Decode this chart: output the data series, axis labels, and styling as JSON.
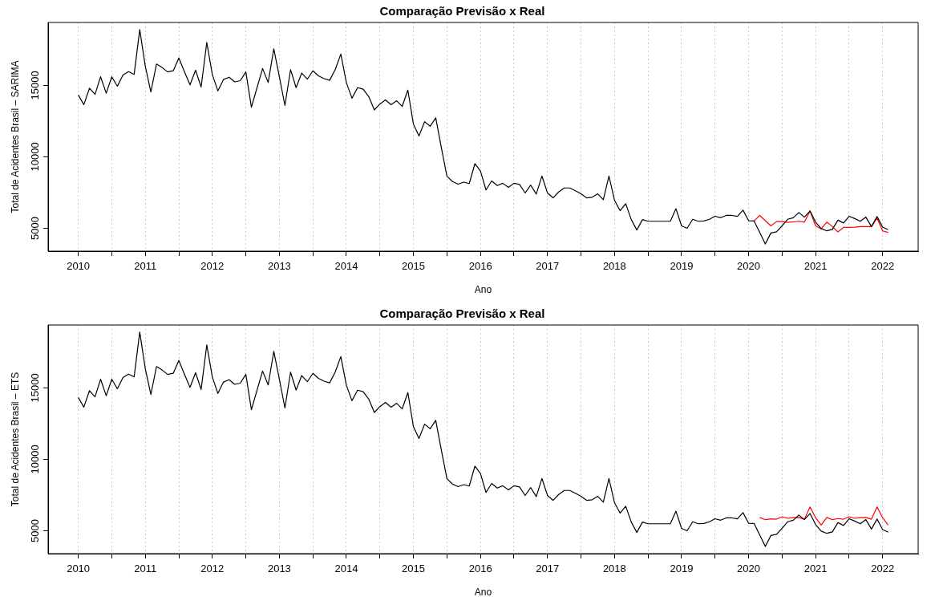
{
  "chart_data": [
    {
      "type": "line",
      "title": "Comparação Previsão x Real",
      "xlabel": "Ano",
      "ylabel": "Total de Acidentes Brasil – SARIMA",
      "legend": false,
      "grid": "x",
      "marker": "none",
      "line_style": "solid",
      "xlim": [
        2009.55,
        2022.53
      ],
      "ylim": [
        3400,
        19400
      ],
      "xticks": [
        2010,
        {
          "value": 2010.5,
          "label": null
        },
        2011,
        {
          "value": 2011.5,
          "label": null
        },
        2012,
        {
          "value": 2012.5,
          "label": null
        },
        2013,
        {
          "value": 2013.5,
          "label": null
        },
        2014,
        {
          "value": 2014.5,
          "label": null
        },
        2015,
        {
          "value": 2015.5,
          "label": null
        },
        2016,
        {
          "value": 2016.5,
          "label": null
        },
        2017,
        {
          "value": 2017.5,
          "label": null
        },
        2018,
        {
          "value": 2018.5,
          "label": null
        },
        2019,
        {
          "value": 2019.5,
          "label": null
        },
        2020,
        {
          "value": 2020.5,
          "label": null
        },
        2021,
        {
          "value": 2021.5,
          "label": null
        },
        2022
      ],
      "yticks": [
        5000,
        10000,
        15000
      ],
      "x": [
        2010,
        2010.083,
        2010.167,
        2010.25,
        2010.333,
        2010.417,
        2010.5,
        2010.583,
        2010.667,
        2010.75,
        2010.833,
        2010.917,
        2011,
        2011.083,
        2011.167,
        2011.25,
        2011.333,
        2011.417,
        2011.5,
        2011.583,
        2011.667,
        2011.75,
        2011.833,
        2011.917,
        2012,
        2012.083,
        2012.167,
        2012.25,
        2012.333,
        2012.417,
        2012.5,
        2012.583,
        2012.667,
        2012.75,
        2012.833,
        2012.917,
        2013,
        2013.083,
        2013.167,
        2013.25,
        2013.333,
        2013.417,
        2013.5,
        2013.583,
        2013.667,
        2013.75,
        2013.833,
        2013.917,
        2014,
        2014.083,
        2014.167,
        2014.25,
        2014.333,
        2014.417,
        2014.5,
        2014.583,
        2014.667,
        2014.75,
        2014.833,
        2014.917,
        2015,
        2015.083,
        2015.167,
        2015.25,
        2015.333,
        2015.417,
        2015.5,
        2015.583,
        2015.667,
        2015.75,
        2015.833,
        2015.917,
        2016,
        2016.083,
        2016.167,
        2016.25,
        2016.333,
        2016.417,
        2016.5,
        2016.583,
        2016.667,
        2016.75,
        2016.833,
        2016.917,
        2017,
        2017.083,
        2017.167,
        2017.25,
        2017.333,
        2017.417,
        2017.5,
        2017.583,
        2017.667,
        2017.75,
        2017.833,
        2017.917,
        2018,
        2018.083,
        2018.167,
        2018.25,
        2018.333,
        2018.417,
        2018.5,
        2018.583,
        2018.667,
        2018.75,
        2018.833,
        2018.917,
        2019,
        2019.083,
        2019.167,
        2019.25,
        2019.333,
        2019.417,
        2019.5,
        2019.583,
        2019.667,
        2019.75,
        2019.833,
        2019.917,
        2020,
        2020.083,
        2020.167,
        2020.25,
        2020.333,
        2020.417,
        2020.5,
        2020.583,
        2020.667,
        2020.75,
        2020.833,
        2020.917,
        2021,
        2021.083,
        2021.167,
        2021.25,
        2021.333,
        2021.417,
        2021.5,
        2021.583,
        2021.667,
        2021.75,
        2021.833,
        2021.917,
        2022,
        2022.083
      ],
      "series": [
        {
          "color": "#000000",
          "values": [
            14325,
            13650,
            14800,
            14370,
            15600,
            14450,
            15600,
            14940,
            15720,
            15960,
            15760,
            18900,
            16330,
            14530,
            16490,
            16250,
            15940,
            16020,
            16920,
            15960,
            15040,
            16060,
            14880,
            18000,
            15760,
            14610,
            15410,
            15570,
            15245,
            15330,
            15940,
            13470,
            14840,
            16180,
            15200,
            17560,
            15600,
            13590,
            16100,
            14840,
            15860,
            15430,
            16020,
            15670,
            15470,
            15350,
            16100,
            17190,
            15180,
            14100,
            14840,
            14735,
            14220,
            13280,
            13690,
            13980,
            13650,
            13920,
            13530,
            14670,
            12280,
            11460,
            12460,
            12140,
            12730,
            10640,
            8640,
            8270,
            8090,
            8230,
            8130,
            9520,
            9010,
            7680,
            8310,
            7990,
            8150,
            7860,
            8150,
            8070,
            7470,
            8020,
            7390,
            8660,
            7470,
            7130,
            7540,
            7820,
            7820,
            7620,
            7410,
            7130,
            7170,
            7410,
            7000,
            8660,
            6960,
            6230,
            6720,
            5610,
            4880,
            5610,
            5490,
            5490,
            5490,
            5490,
            5490,
            6370,
            5170,
            5000,
            5630,
            5490,
            5510,
            5630,
            5840,
            5740,
            5900,
            5900,
            5840,
            6270,
            5530,
            5510,
            4710,
            3900,
            4670,
            4750,
            5170,
            5630,
            5740,
            6100,
            5780,
            6210,
            5430,
            4980,
            4820,
            4920,
            5570,
            5370,
            5840,
            5680,
            5490,
            5780,
            5120,
            5820,
            5080,
            4900
          ]
        },
        {
          "color": "#ff0000",
          "x": [
            2020.083,
            2020.167,
            2020.25,
            2020.333,
            2020.417,
            2020.5,
            2020.583,
            2020.667,
            2020.75,
            2020.833,
            2020.917,
            2021,
            2021.083,
            2021.167,
            2021.25,
            2021.333,
            2021.417,
            2021.5,
            2021.583,
            2021.667,
            2021.75,
            2021.833,
            2021.917,
            2022,
            2022.083
          ],
          "values": [
            5510,
            5900,
            5530,
            5170,
            5470,
            5470,
            5410,
            5450,
            5490,
            5430,
            6210,
            5170,
            4960,
            5430,
            5120,
            4750,
            5060,
            5060,
            5080,
            5120,
            5120,
            5120,
            5700,
            4820,
            4710
          ]
        }
      ]
    },
    {
      "type": "line",
      "title": "Comparação Previsão x Real",
      "xlabel": "Ano",
      "ylabel": "Total de Acidentes Brasil – ETS",
      "legend": false,
      "grid": "x",
      "marker": "none",
      "line_style": "solid",
      "xlim": [
        2009.55,
        2022.53
      ],
      "ylim": [
        3400,
        19400
      ],
      "xticks": [
        2010,
        {
          "value": 2010.5,
          "label": null
        },
        2011,
        {
          "value": 2011.5,
          "label": null
        },
        2012,
        {
          "value": 2012.5,
          "label": null
        },
        2013,
        {
          "value": 2013.5,
          "label": null
        },
        2014,
        {
          "value": 2014.5,
          "label": null
        },
        2015,
        {
          "value": 2015.5,
          "label": null
        },
        2016,
        {
          "value": 2016.5,
          "label": null
        },
        2017,
        {
          "value": 2017.5,
          "label": null
        },
        2018,
        {
          "value": 2018.5,
          "label": null
        },
        2019,
        {
          "value": 2019.5,
          "label": null
        },
        2020,
        {
          "value": 2020.5,
          "label": null
        },
        2021,
        {
          "value": 2021.5,
          "label": null
        },
        2022
      ],
      "yticks": [
        5000,
        10000,
        15000
      ],
      "x": [
        2010,
        2010.083,
        2010.167,
        2010.25,
        2010.333,
        2010.417,
        2010.5,
        2010.583,
        2010.667,
        2010.75,
        2010.833,
        2010.917,
        2011,
        2011.083,
        2011.167,
        2011.25,
        2011.333,
        2011.417,
        2011.5,
        2011.583,
        2011.667,
        2011.75,
        2011.833,
        2011.917,
        2012,
        2012.083,
        2012.167,
        2012.25,
        2012.333,
        2012.417,
        2012.5,
        2012.583,
        2012.667,
        2012.75,
        2012.833,
        2012.917,
        2013,
        2013.083,
        2013.167,
        2013.25,
        2013.333,
        2013.417,
        2013.5,
        2013.583,
        2013.667,
        2013.75,
        2013.833,
        2013.917,
        2014,
        2014.083,
        2014.167,
        2014.25,
        2014.333,
        2014.417,
        2014.5,
        2014.583,
        2014.667,
        2014.75,
        2014.833,
        2014.917,
        2015,
        2015.083,
        2015.167,
        2015.25,
        2015.333,
        2015.417,
        2015.5,
        2015.583,
        2015.667,
        2015.75,
        2015.833,
        2015.917,
        2016,
        2016.083,
        2016.167,
        2016.25,
        2016.333,
        2016.417,
        2016.5,
        2016.583,
        2016.667,
        2016.75,
        2016.833,
        2016.917,
        2017,
        2017.083,
        2017.167,
        2017.25,
        2017.333,
        2017.417,
        2017.5,
        2017.583,
        2017.667,
        2017.75,
        2017.833,
        2017.917,
        2018,
        2018.083,
        2018.167,
        2018.25,
        2018.333,
        2018.417,
        2018.5,
        2018.583,
        2018.667,
        2018.75,
        2018.833,
        2018.917,
        2019,
        2019.083,
        2019.167,
        2019.25,
        2019.333,
        2019.417,
        2019.5,
        2019.583,
        2019.667,
        2019.75,
        2019.833,
        2019.917,
        2020,
        2020.083,
        2020.167,
        2020.25,
        2020.333,
        2020.417,
        2020.5,
        2020.583,
        2020.667,
        2020.75,
        2020.833,
        2020.917,
        2021,
        2021.083,
        2021.167,
        2021.25,
        2021.333,
        2021.417,
        2021.5,
        2021.583,
        2021.667,
        2021.75,
        2021.833,
        2021.917,
        2022,
        2022.083
      ],
      "series": [
        {
          "color": "#000000",
          "values": [
            14325,
            13650,
            14800,
            14370,
            15600,
            14450,
            15600,
            14940,
            15720,
            15960,
            15760,
            18900,
            16330,
            14530,
            16490,
            16250,
            15940,
            16020,
            16920,
            15960,
            15040,
            16060,
            14880,
            18000,
            15760,
            14610,
            15410,
            15570,
            15245,
            15330,
            15940,
            13470,
            14840,
            16180,
            15200,
            17560,
            15600,
            13590,
            16100,
            14840,
            15860,
            15430,
            16020,
            15670,
            15470,
            15350,
            16100,
            17190,
            15180,
            14100,
            14840,
            14735,
            14220,
            13280,
            13690,
            13980,
            13650,
            13920,
            13530,
            14670,
            12280,
            11460,
            12460,
            12140,
            12730,
            10640,
            8640,
            8270,
            8090,
            8230,
            8130,
            9520,
            9010,
            7680,
            8310,
            7990,
            8150,
            7860,
            8150,
            8070,
            7470,
            8020,
            7390,
            8660,
            7470,
            7130,
            7540,
            7820,
            7820,
            7620,
            7410,
            7130,
            7170,
            7410,
            7000,
            8660,
            6960,
            6230,
            6720,
            5610,
            4880,
            5610,
            5490,
            5490,
            5490,
            5490,
            5490,
            6370,
            5170,
            5000,
            5630,
            5490,
            5510,
            5630,
            5840,
            5740,
            5900,
            5900,
            5840,
            6270,
            5530,
            5510,
            4710,
            3900,
            4670,
            4750,
            5170,
            5630,
            5740,
            6100,
            5780,
            6210,
            5430,
            4980,
            4820,
            4920,
            5570,
            5370,
            5840,
            5680,
            5490,
            5780,
            5120,
            5820,
            5080,
            4900
          ]
        },
        {
          "color": "#ff0000",
          "x": [
            2020.167,
            2020.25,
            2020.333,
            2020.417,
            2020.5,
            2020.583,
            2020.667,
            2020.75,
            2020.833,
            2020.917,
            2021,
            2021.083,
            2021.167,
            2021.25,
            2021.333,
            2021.417,
            2021.5,
            2021.583,
            2021.667,
            2021.75,
            2021.833,
            2021.917,
            2022,
            2022.083
          ],
          "values": [
            5935,
            5775,
            5840,
            5810,
            5980,
            5870,
            5915,
            5935,
            5810,
            6670,
            5915,
            5400,
            5935,
            5775,
            5855,
            5810,
            5980,
            5870,
            5915,
            5935,
            5810,
            6670,
            5915,
            5400
          ]
        }
      ]
    }
  ]
}
